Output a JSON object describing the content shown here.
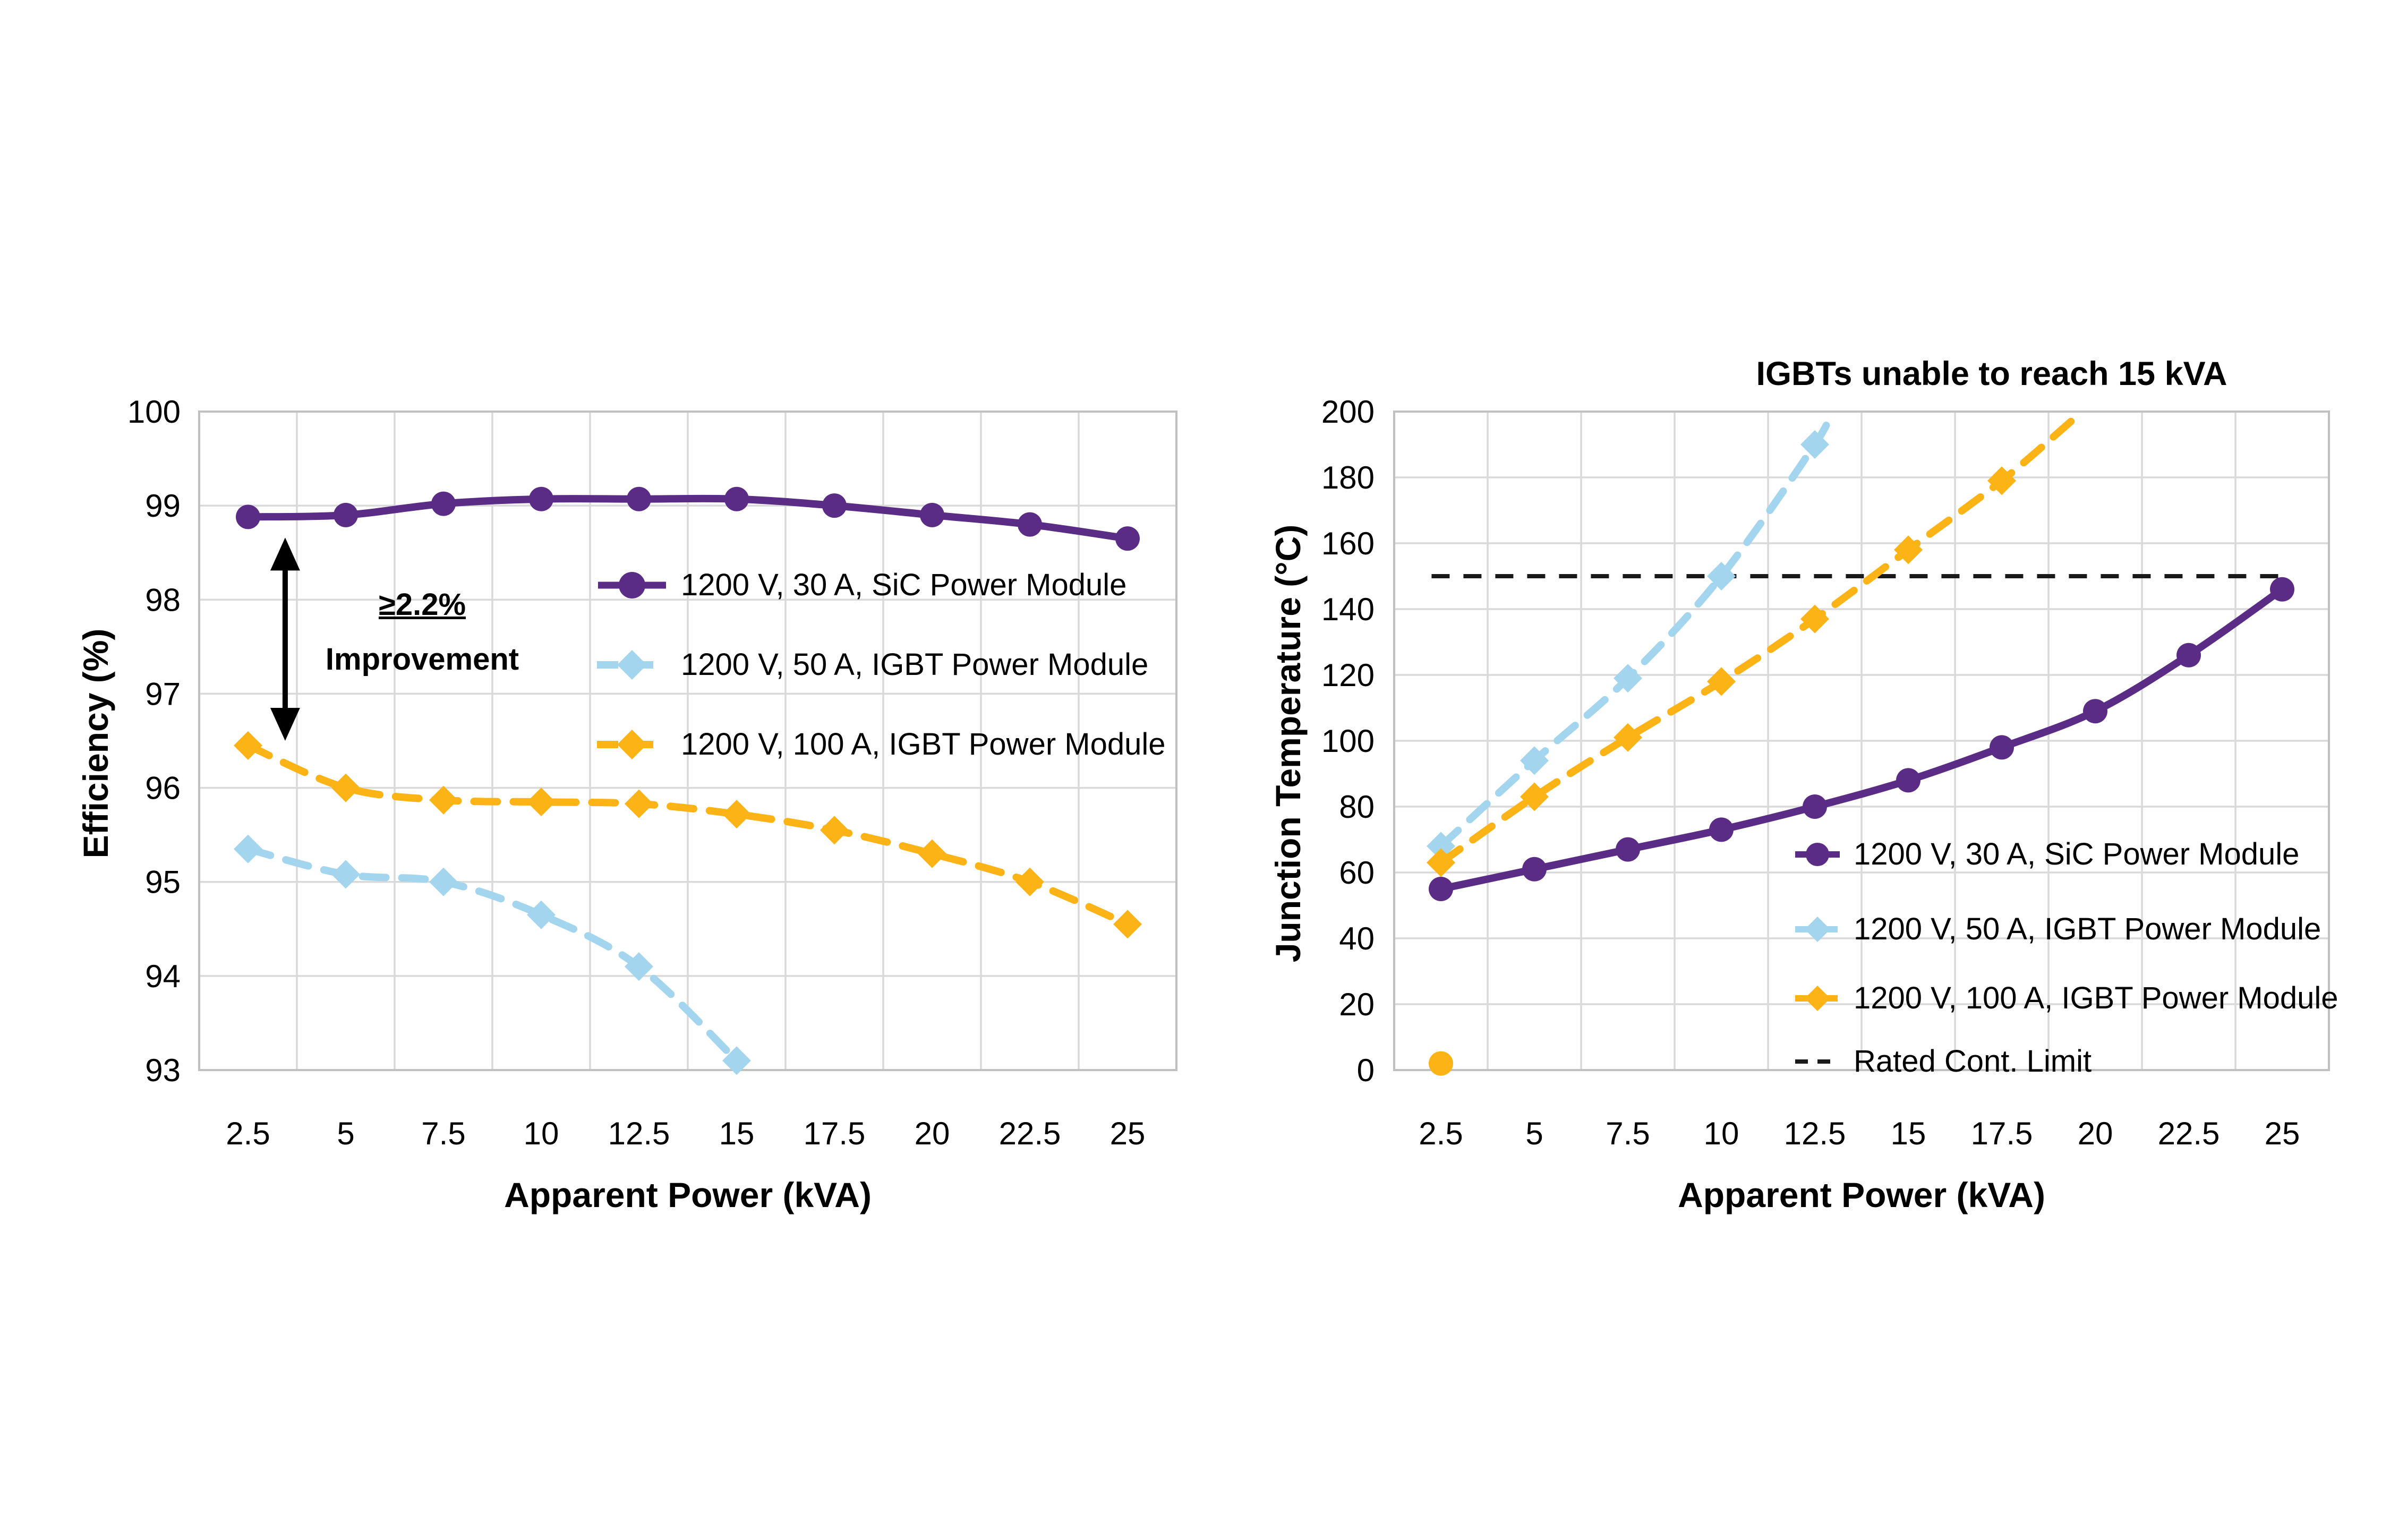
{
  "colors": {
    "purple": "#5B2C86",
    "blue": "#A3D5EF",
    "orange": "#FBB316",
    "grid": "#D9D9D9",
    "plot_border": "#C0C0C0",
    "limit_black": "#1A1A1A",
    "text": "#000000",
    "background": "#FFFFFF"
  },
  "chart_data": [
    {
      "type": "line",
      "title": "",
      "xlabel": "Apparent Power (kVA)",
      "ylabel": "Efficiency (%)",
      "x": [
        2.5,
        5,
        7.5,
        10,
        12.5,
        15,
        17.5,
        20,
        22.5,
        25
      ],
      "ylim": [
        93,
        100
      ],
      "ytick_step": 1,
      "grid": "both",
      "legend_position": "inside-right",
      "series": [
        {
          "name": "1200 V, 30 A, SiC Power Module",
          "color_key": "purple",
          "line": "solid",
          "marker": "circle",
          "values": [
            98.88,
            98.9,
            99.02,
            99.07,
            99.07,
            99.07,
            99.0,
            98.9,
            98.8,
            98.65
          ]
        },
        {
          "name": "1200 V, 50 A, IGBT Power Module",
          "color_key": "blue",
          "line": "dashed",
          "marker": "diamond",
          "values": [
            95.35,
            95.08,
            95.0,
            94.65,
            94.1,
            93.1
          ]
        },
        {
          "name": "1200 V, 100 A, IGBT Power Module",
          "color_key": "orange",
          "line": "dashed",
          "marker": "diamond",
          "values": [
            96.45,
            96.0,
            95.87,
            95.85,
            95.83,
            95.72,
            95.55,
            95.3,
            95.0,
            94.55
          ]
        }
      ],
      "annotation": {
        "label_line1": "≥2.2%",
        "label_line2": "Improvement",
        "arrow_x_kva": 3.45,
        "arrow_y_top": 98.66,
        "arrow_y_bottom": 96.5,
        "label_x_kva": 6.9,
        "label_y1": 97.95,
        "label_y2": 97.38
      }
    },
    {
      "type": "line",
      "title": "IGBTs unable to reach 15 kVA",
      "xlabel": "Apparent Power (kVA)",
      "ylabel": "Junction Temperature (°C)",
      "x": [
        2.5,
        5,
        7.5,
        10,
        12.5,
        15,
        17.5,
        20,
        22.5,
        25
      ],
      "ylim": [
        0,
        200
      ],
      "ytick_step": 20,
      "grid": "both",
      "legend_position": "inside-bottom-right",
      "series": [
        {
          "name": "1200 V, 30 A, SiC Power Module",
          "color_key": "purple",
          "line": "solid",
          "marker": "circle",
          "values": [
            55,
            61,
            67,
            73,
            80,
            88,
            98,
            109,
            126,
            146
          ]
        },
        {
          "name": "1200 V, 50 A, IGBT Power Module",
          "color_key": "blue",
          "line": "dashed",
          "marker": "diamond",
          "values": [
            68,
            94,
            119,
            150,
            190
          ],
          "ext": [
            {
              "x": 12.92,
              "y": 200
            }
          ]
        },
        {
          "name": "1200 V, 100 A, IGBT Power Module",
          "color_key": "orange",
          "line": "dashed",
          "marker": "diamond",
          "values": [
            63,
            83,
            101,
            118,
            137,
            158,
            179
          ],
          "ext": [
            {
              "x": 19.35,
              "y": 197
            }
          ]
        }
      ],
      "limit_line": {
        "name": "Rated Cont. Limit",
        "y": 150,
        "x_start_kva": 2.25,
        "x_end_kva": 24.9
      },
      "extra_points": [
        {
          "x": 2.5,
          "y": 2,
          "color_key": "orange",
          "marker": "circle"
        }
      ]
    }
  ]
}
